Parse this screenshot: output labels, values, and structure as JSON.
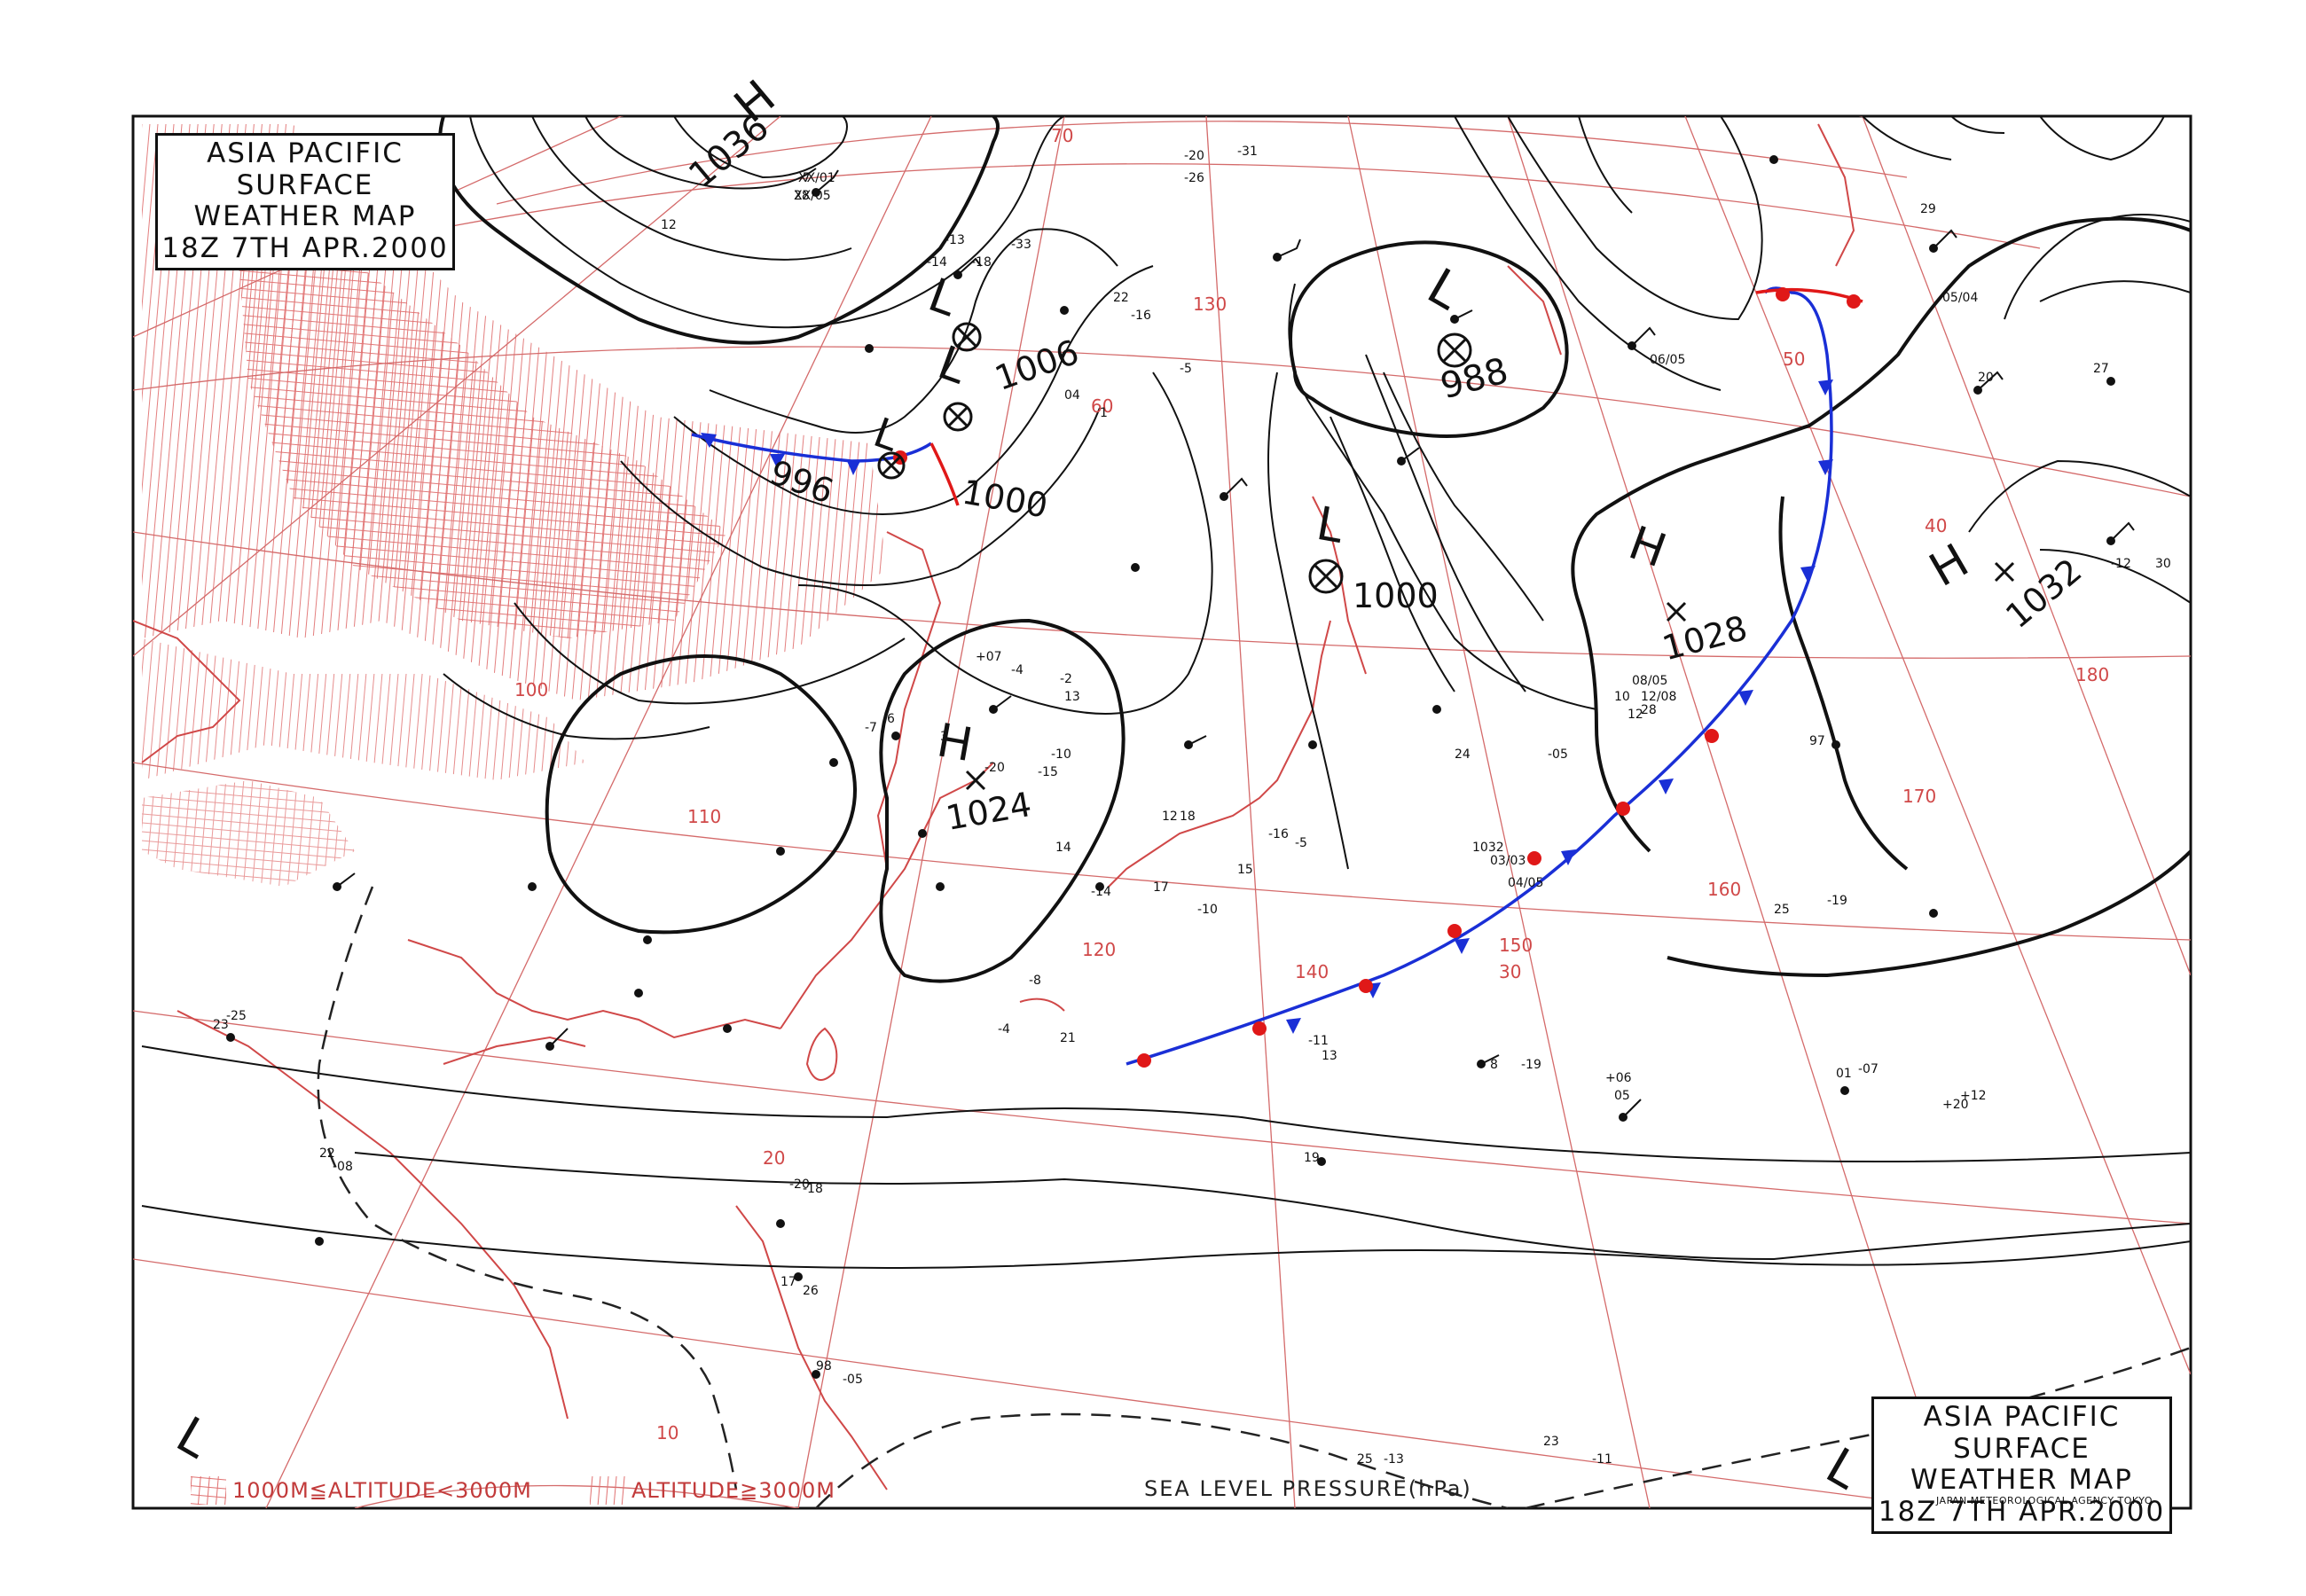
{
  "title": {
    "line1": "ASIA PACIFIC",
    "line2": "SURFACE WEATHER MAP",
    "line3": "18Z  7TH APR.2000"
  },
  "legend": {
    "mid_altitude": "1000M≦ALTITUDE<3000M",
    "high_altitude": "ALTITUDE≧3000M"
  },
  "pressure_label": "SEA LEVEL PRESSURE(hPa)",
  "agency": "JAPAN METEOROLOGICAL AGENCY TOKYO",
  "colors": {
    "isobar": "#111111",
    "geography": "#d04848",
    "graticule": "#d46a6a",
    "cold_front": "#1a2fd6",
    "warm_front": "#e01818"
  },
  "pressure_systems": [
    {
      "type": "H",
      "value": "1036"
    },
    {
      "type": "L",
      "value": "1006"
    },
    {
      "type": "L",
      "value": "1000"
    },
    {
      "type": "L",
      "value": "996"
    },
    {
      "type": "L",
      "value": "988"
    },
    {
      "type": "L",
      "value": "1000"
    },
    {
      "type": "H",
      "value": "1024"
    },
    {
      "type": "H",
      "value": "1028"
    },
    {
      "type": "H",
      "value": "1032"
    },
    {
      "type": "L",
      "value": ""
    },
    {
      "type": "L",
      "value": ""
    }
  ],
  "latitude_labels": [
    "70",
    "60",
    "50",
    "40",
    "30",
    "20",
    "10"
  ],
  "longitude_labels": [
    "100",
    "110",
    "120",
    "130",
    "140",
    "150",
    "160",
    "170",
    "180"
  ],
  "station_obs": [
    "-7",
    "28",
    "12",
    "-13",
    "-14",
    "-18",
    "22",
    "-16",
    "-20",
    "-26",
    "-31",
    "-33",
    "04",
    "1",
    "-5",
    "+07",
    "-4",
    "-2",
    "13",
    "-7",
    "6",
    "3",
    "-20",
    "-15",
    "14",
    "-10",
    "12",
    "18",
    "-16",
    "-5",
    "15",
    "-14",
    "17",
    "-10",
    "-8",
    "-4",
    "21",
    "19",
    "-11",
    "13",
    "8",
    "-19",
    "+06",
    "05",
    "01",
    "-07",
    "+12",
    "+20",
    "-20",
    "-18",
    "17",
    "26",
    "98",
    "-05",
    "22",
    "-08",
    "23",
    "-25",
    "24",
    "-05",
    "25",
    "-19",
    "20",
    "27",
    "-12",
    "25",
    "-13",
    "23",
    "-11",
    "29",
    "30",
    "97",
    "10",
    "12",
    "28",
    "1032",
    "03/03",
    "04/05",
    "05/04",
    "06/05",
    "08/05",
    "12/08",
    "XX/01",
    "XX/05"
  ]
}
